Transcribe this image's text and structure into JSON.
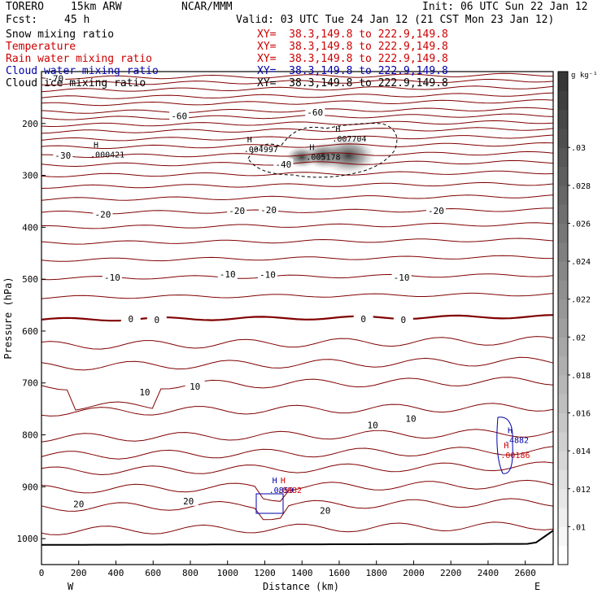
{
  "header": {
    "model": "TORERO",
    "resolution": "15km ARW",
    "org": "NCAR/MMM",
    "init": "Init: 06 UTC Sun 22 Jan 12",
    "fcst_label": "Fcst:",
    "fcst_value": "45 h",
    "valid": "Valid: 03 UTC Tue 24 Jan 12 (21 CST Mon 23 Jan 12)"
  },
  "fields": [
    {
      "name": "Snow mixing ratio",
      "xy": "XY=  38.3,149.8 to 222.9,149.8",
      "color": "#000000"
    },
    {
      "name": "Temperature",
      "xy": "XY=  38.3,149.8 to 222.9,149.8",
      "color": "#cc0000"
    },
    {
      "name": "Rain water mixing ratio",
      "xy": "XY=  38.3,149.8 to 222.9,149.8",
      "color": "#cc0000"
    },
    {
      "name": "Cloud water mixing ratio",
      "xy": "XY=  38.3,149.8 to 222.9,149.8",
      "color": "#0000aa"
    },
    {
      "name": "Cloud ice mixing ratio",
      "xy": "XY=  38.3,149.8 to 222.9,149.8",
      "color": "#000000"
    }
  ],
  "chart_data": {
    "type": "line",
    "xlabel": "Distance (km)",
    "ylabel": "Pressure (hPa)",
    "xlim": [
      0,
      2750
    ],
    "ylim": [
      1050,
      100
    ],
    "x_ticks": [
      0,
      200,
      400,
      600,
      800,
      1000,
      1200,
      1400,
      1600,
      1800,
      2000,
      2200,
      2400,
      2600
    ],
    "y_ticks": [
      200,
      300,
      400,
      500,
      600,
      700,
      800,
      900,
      1000
    ],
    "west_label": "W",
    "east_label": "E",
    "colorbar": {
      "unit": "g kg⁻¹",
      "min": 0.008,
      "max": 0.034,
      "ticks": [
        ".01",
        ".012",
        ".014",
        ".016",
        ".018",
        ".02",
        ".022",
        ".024",
        ".026",
        ".028",
        ".03"
      ],
      "tick_values": [
        0.01,
        0.012,
        0.014,
        0.016,
        0.018,
        0.02,
        0.022,
        0.024,
        0.026,
        0.028,
        0.03
      ]
    },
    "isotherm_labels": [
      {
        "text": "-70",
        "x": 75,
        "p": 115
      },
      {
        "text": "-60",
        "x": 740,
        "p": 187
      },
      {
        "text": "-60",
        "x": 1470,
        "p": 180
      },
      {
        "text": "-40",
        "x": 1300,
        "p": 280
      },
      {
        "text": "-30",
        "x": 115,
        "p": 263
      },
      {
        "text": "-20",
        "x": 330,
        "p": 377
      },
      {
        "text": "-20",
        "x": 1050,
        "p": 370
      },
      {
        "text": "-20",
        "x": 1220,
        "p": 368
      },
      {
        "text": "-20",
        "x": 2120,
        "p": 370
      },
      {
        "text": "-10",
        "x": 380,
        "p": 498
      },
      {
        "text": "-10",
        "x": 1000,
        "p": 492
      },
      {
        "text": "-10",
        "x": 1215,
        "p": 493
      },
      {
        "text": "-10",
        "x": 1935,
        "p": 498
      },
      {
        "text": "0",
        "x": 480,
        "p": 578
      },
      {
        "text": "0",
        "x": 620,
        "p": 580
      },
      {
        "text": "0",
        "x": 1730,
        "p": 578
      },
      {
        "text": "0",
        "x": 1945,
        "p": 580
      },
      {
        "text": "10",
        "x": 555,
        "p": 719
      },
      {
        "text": "10",
        "x": 825,
        "p": 708
      },
      {
        "text": "10",
        "x": 1780,
        "p": 783
      },
      {
        "text": "10",
        "x": 1985,
        "p": 770
      },
      {
        "text": "20",
        "x": 200,
        "p": 935
      },
      {
        "text": "20",
        "x": 790,
        "p": 929
      },
      {
        "text": "20",
        "x": 1525,
        "p": 947
      }
    ],
    "extrema": [
      {
        "mark": "H",
        "value": ".000421",
        "x": 280,
        "p": 265,
        "color": "#000000"
      },
      {
        "mark": "H",
        "value": ".004997",
        "x": 1105,
        "p": 255,
        "color": "#000000"
      },
      {
        "mark": "H",
        "value": ".005178",
        "x": 1440,
        "p": 270,
        "color": "#000000"
      },
      {
        "mark": "H",
        "value": ".007704",
        "x": 1580,
        "p": 235,
        "color": "#000000"
      },
      {
        "mark": "H",
        "value": ".0859",
        "x": 1240,
        "p": 912,
        "color": "#0000aa"
      },
      {
        "mark": "H",
        "value": ".0982",
        "x": 1285,
        "p": 912,
        "color": "#cc0000"
      },
      {
        "mark": "H",
        "value": ".4882",
        "x": 2505,
        "p": 816,
        "color": "#0000aa"
      },
      {
        "mark": "H",
        "value": ".00186",
        "x": 2485,
        "p": 845,
        "color": "#cc0000"
      }
    ],
    "snow_blobs": [
      {
        "x": 1400,
        "p": 265,
        "value": 0.022
      },
      {
        "x": 1520,
        "p": 262,
        "value": 0.026
      },
      {
        "x": 1650,
        "p": 262,
        "value": 0.034
      }
    ],
    "grid": false,
    "legend": "top-left"
  }
}
